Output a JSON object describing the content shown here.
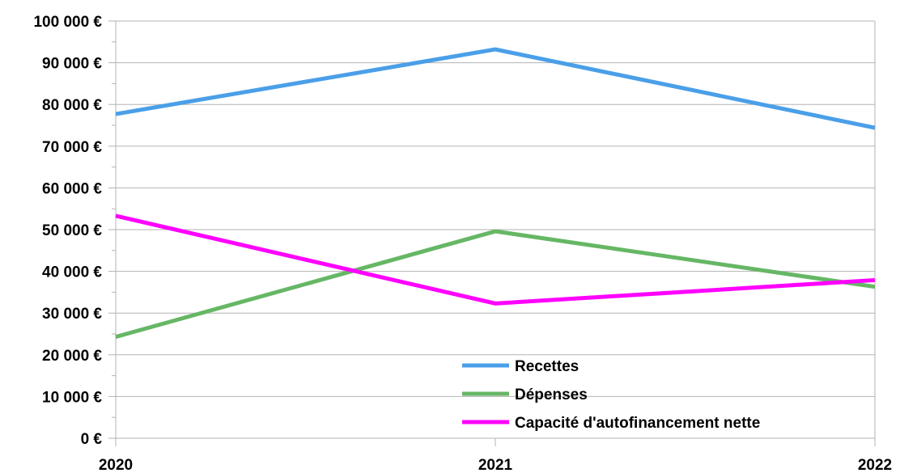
{
  "chart_data": {
    "type": "line",
    "title": "",
    "xlabel": "",
    "ylabel": "",
    "categories": [
      "2020",
      "2021",
      "2022"
    ],
    "ylim": [
      0,
      100000
    ],
    "y_ticks": [
      "0 €",
      "10 000 €",
      "20 000 €",
      "30 000 €",
      "40 000 €",
      "50 000 €",
      "60 000 €",
      "70 000 €",
      "80 000 €",
      "90 000 €",
      "100 000 €"
    ],
    "grid": "horizontal",
    "legend_position": "bottom-center inside plot",
    "series": [
      {
        "name": "Recettes",
        "color": "#4a9fe8",
        "values": [
          77700,
          93200,
          74400
        ]
      },
      {
        "name": "Dépenses",
        "color": "#66b765",
        "values": [
          24300,
          49600,
          36300
        ]
      },
      {
        "name": "Capacité d'autofinancement nette",
        "color": "#ff00ff",
        "values": [
          53300,
          32300,
          37900
        ]
      }
    ]
  }
}
